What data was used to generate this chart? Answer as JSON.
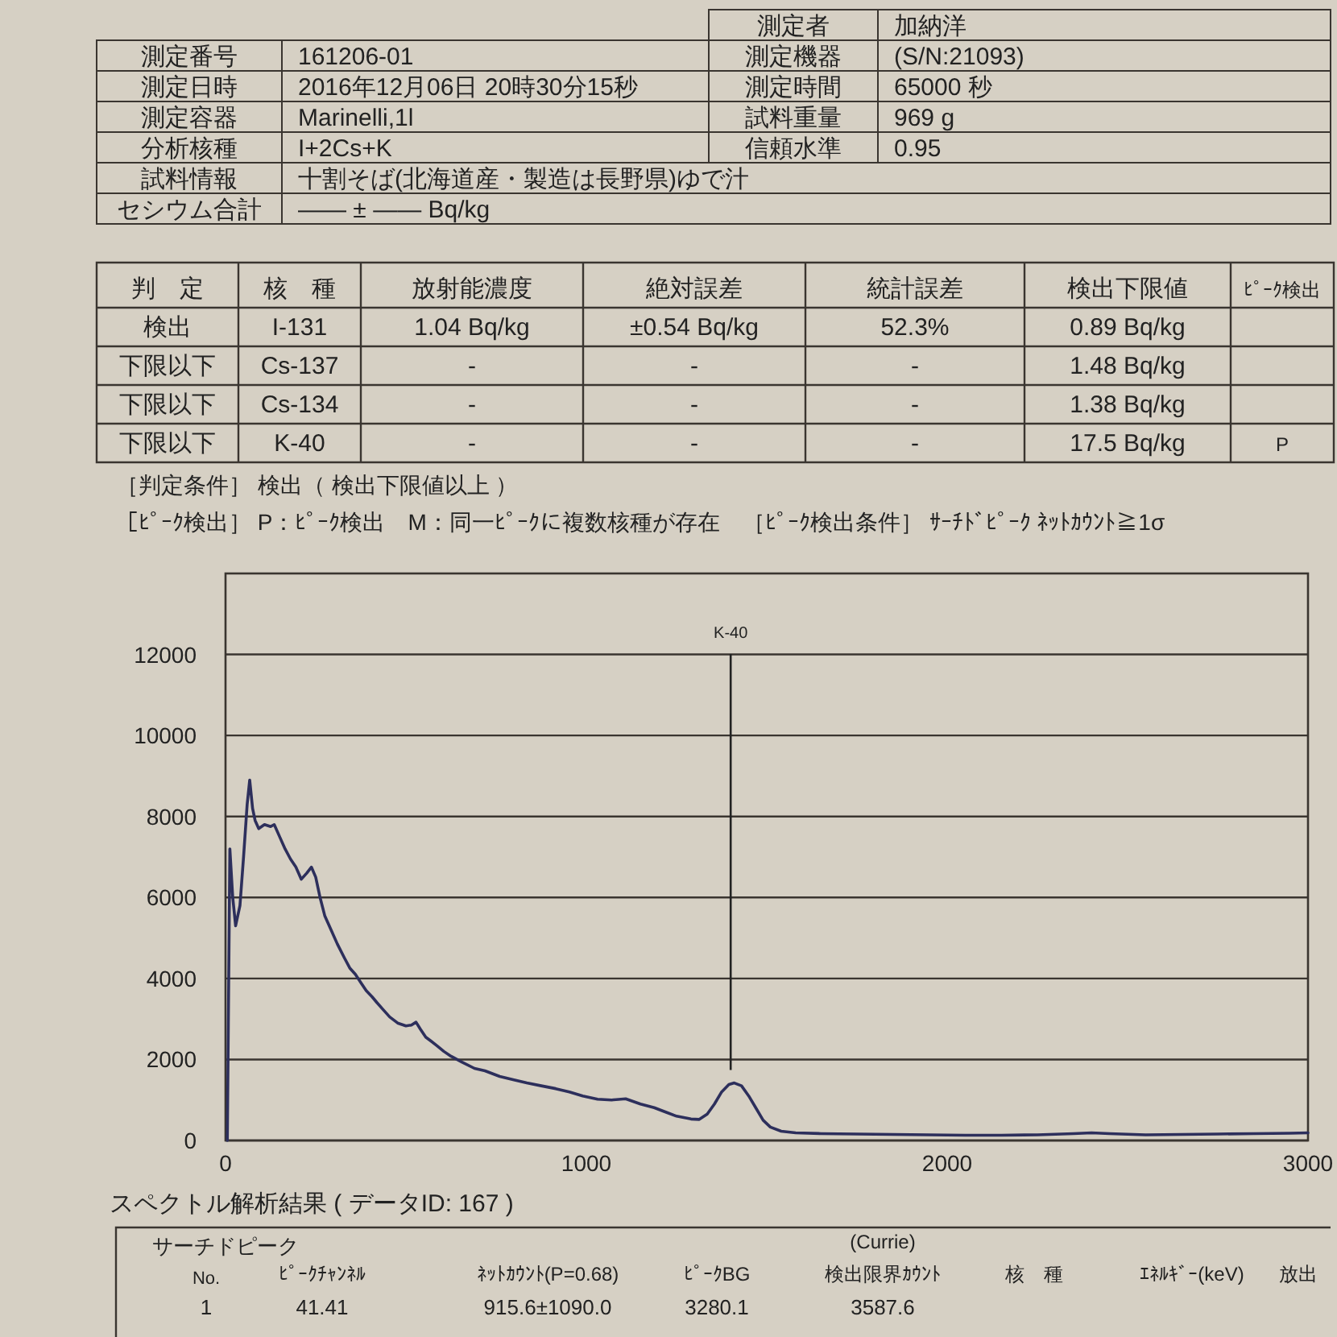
{
  "chart_data": [
    {
      "type": "other",
      "annotations": [
        "測定者",
        "加納洋",
        "測定番号",
        "161206-01",
        "測定機器",
        "(S/N:21093)",
        "測定日時",
        "2016年12月06日 20時30分15秒",
        "測定時間",
        "65000 秒",
        "測定容器",
        "Marinelli,1l",
        "試料重量",
        "969 g",
        "分析核種",
        "I+2Cs+K",
        "信頼水準",
        "0.95",
        "試料情報",
        "十割そば(北海道産・製造は長野県)ゆで汁",
        "セシウム合計",
        "―― ± ―― Bq/kg"
      ]
    },
    {
      "type": "other",
      "annotations": [
        "判　定",
        "核　種",
        "放射能濃度",
        "絶対誤差",
        "統計誤差",
        "検出下限値",
        "ﾋﾟｰｸ検出",
        "検出",
        "I-131",
        "1.04 Bq/kg",
        "±0.54 Bq/kg",
        "52.3%",
        "0.89 Bq/kg",
        "下限以下",
        "Cs-137",
        "-",
        "-",
        "-",
        "1.48 Bq/kg",
        "下限以下",
        "Cs-134",
        "-",
        "-",
        "-",
        "1.38 Bq/kg",
        "下限以下",
        "K-40",
        "-",
        "-",
        "-",
        "17.5 Bq/kg",
        "P",
        "［判定条件］ 検出（ 検出下限値以上 ）",
        "［ﾋﾟｰｸ検出］ P：ﾋﾟｰｸ検出　M：同一ﾋﾟｰｸに複数核種が存在　［ﾋﾟｰｸ検出条件］ ｻｰﾁﾄﾞﾋﾟｰｸ ﾈｯﾄｶｳﾝﾄ≧1σ"
      ]
    },
    {
      "type": "line",
      "color": "#2d2f5c",
      "grid": "y",
      "xlim": [
        0,
        3000
      ],
      "ylim": [
        0,
        14000
      ],
      "xticks": [
        0,
        1000,
        2000,
        3000
      ],
      "yticks": [
        0,
        2000,
        4000,
        6000,
        8000,
        10000,
        12000
      ],
      "x": [
        5,
        12,
        20,
        28,
        40,
        50,
        60,
        67,
        75,
        82,
        92,
        108,
        125,
        135,
        150,
        165,
        180,
        195,
        210,
        225,
        238,
        250,
        262,
        275,
        290,
        310,
        330,
        345,
        360,
        375,
        390,
        406,
        420,
        438,
        455,
        477,
        500,
        515,
        528,
        540,
        555,
        570,
        586,
        605,
        625,
        656,
        690,
        719,
        760,
        797,
        835,
        875,
        915,
        953,
        990,
        1031,
        1070,
        1109,
        1150,
        1188,
        1220,
        1250,
        1290,
        1313,
        1335,
        1355,
        1375,
        1395,
        1410,
        1430,
        1450,
        1470,
        1490,
        1510,
        1540,
        1580,
        1650,
        1750,
        1850,
        1950,
        2050,
        2150,
        2250,
        2350,
        2400,
        2450,
        2550,
        2650,
        2750,
        2850,
        2950,
        3000
      ],
      "values": [
        0,
        7200,
        6000,
        5300,
        5800,
        7000,
        8300,
        8900,
        8200,
        7900,
        7700,
        7800,
        7750,
        7800,
        7500,
        7200,
        6950,
        6750,
        6450,
        6600,
        6750,
        6500,
        6000,
        5550,
        5250,
        4850,
        4500,
        4250,
        4100,
        3900,
        3700,
        3550,
        3400,
        3220,
        3050,
        2900,
        2830,
        2850,
        2920,
        2750,
        2550,
        2450,
        2340,
        2200,
        2080,
        1930,
        1780,
        1720,
        1580,
        1500,
        1420,
        1350,
        1280,
        1200,
        1100,
        1020,
        1000,
        1030,
        900,
        810,
        700,
        600,
        530,
        520,
        650,
        900,
        1200,
        1380,
        1420,
        1350,
        1100,
        800,
        500,
        330,
        230,
        190,
        170,
        160,
        150,
        140,
        130,
        130,
        140,
        170,
        190,
        170,
        140,
        150,
        160,
        170,
        180,
        190
      ],
      "ref_lines": [
        {
          "axis": "x",
          "value": 1400,
          "label": "K-40"
        }
      ]
    },
    {
      "type": "other",
      "title": "スペクトル解析結果 ( データID: 167 )",
      "annotations": [
        "サーチドピーク",
        "(Currie)",
        "No.",
        "ﾋﾟｰｸﾁｬﾝﾈﾙ",
        "ﾈｯﾄｶｳﾝﾄ(P=0.68)",
        "ﾋﾟｰｸBG",
        "検出限界ｶｳﾝﾄ",
        "核　種",
        "ｴﾈﾙｷﾞｰ(keV)",
        "放出",
        "1",
        "41.41",
        "915.6±1090.0",
        "3280.1",
        "3587.6"
      ]
    }
  ]
}
